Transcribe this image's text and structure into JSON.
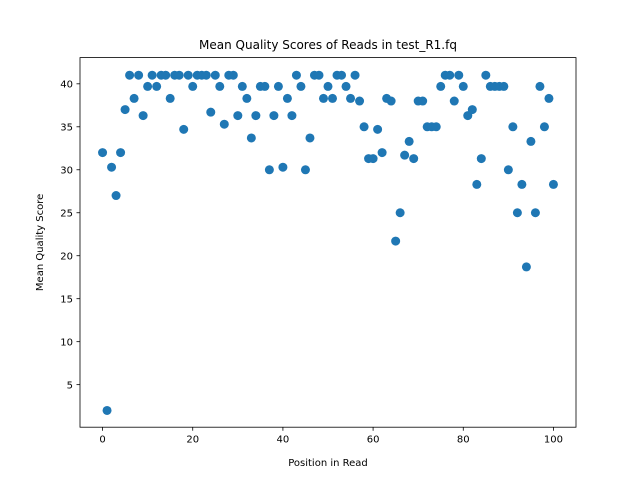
{
  "chart_data": {
    "type": "scatter",
    "title": "Mean Quality Scores of Reads in test_R1.fq",
    "xlabel": "Position in Read",
    "ylabel": "Mean Quality Score",
    "xlim": [
      -5,
      105
    ],
    "ylim": [
      0.05,
      43.05
    ],
    "xticks": [
      0,
      20,
      40,
      60,
      80,
      100
    ],
    "yticks": [
      5,
      10,
      15,
      20,
      25,
      30,
      35,
      40
    ],
    "grid": false,
    "marker_color": "#1f77b4",
    "points": [
      [
        0,
        32
      ],
      [
        1,
        2
      ],
      [
        2,
        30.3
      ],
      [
        3,
        27
      ],
      [
        4,
        32
      ],
      [
        5,
        37
      ],
      [
        6,
        41
      ],
      [
        7,
        38.3
      ],
      [
        8,
        41
      ],
      [
        9,
        36.3
      ],
      [
        10,
        39.7
      ],
      [
        11,
        41
      ],
      [
        12,
        39.7
      ],
      [
        13,
        41
      ],
      [
        14,
        41
      ],
      [
        15,
        38.3
      ],
      [
        16,
        41
      ],
      [
        17,
        41
      ],
      [
        18,
        34.7
      ],
      [
        19,
        41
      ],
      [
        20,
        39.7
      ],
      [
        21,
        41
      ],
      [
        22,
        41
      ],
      [
        23,
        41
      ],
      [
        24,
        36.7
      ],
      [
        25,
        41
      ],
      [
        26,
        39.7
      ],
      [
        27,
        35.3
      ],
      [
        28,
        41
      ],
      [
        29,
        41
      ],
      [
        30,
        36.3
      ],
      [
        31,
        39.7
      ],
      [
        32,
        38.3
      ],
      [
        33,
        33.7
      ],
      [
        34,
        36.3
      ],
      [
        35,
        39.7
      ],
      [
        36,
        39.7
      ],
      [
        37,
        30
      ],
      [
        38,
        36.3
      ],
      [
        39,
        39.7
      ],
      [
        40,
        30.3
      ],
      [
        41,
        38.3
      ],
      [
        42,
        36.3
      ],
      [
        43,
        41
      ],
      [
        44,
        39.7
      ],
      [
        45,
        30
      ],
      [
        46,
        33.7
      ],
      [
        47,
        41
      ],
      [
        48,
        41
      ],
      [
        49,
        38.3
      ],
      [
        50,
        39.7
      ],
      [
        51,
        38.3
      ],
      [
        52,
        41
      ],
      [
        53,
        41
      ],
      [
        54,
        39.7
      ],
      [
        55,
        38.3
      ],
      [
        56,
        41
      ],
      [
        57,
        38
      ],
      [
        58,
        35
      ],
      [
        59,
        31.3
      ],
      [
        60,
        31.3
      ],
      [
        61,
        34.7
      ],
      [
        62,
        32
      ],
      [
        63,
        38.3
      ],
      [
        64,
        38
      ],
      [
        65,
        21.7
      ],
      [
        66,
        25
      ],
      [
        67,
        31.7
      ],
      [
        68,
        33.3
      ],
      [
        69,
        31.3
      ],
      [
        70,
        38
      ],
      [
        71,
        38
      ],
      [
        72,
        35
      ],
      [
        73,
        35
      ],
      [
        74,
        35
      ],
      [
        75,
        39.7
      ],
      [
        76,
        41
      ],
      [
        77,
        41
      ],
      [
        78,
        38
      ],
      [
        79,
        41
      ],
      [
        80,
        39.7
      ],
      [
        81,
        36.3
      ],
      [
        82,
        37
      ],
      [
        83,
        28.3
      ],
      [
        84,
        31.3
      ],
      [
        85,
        41
      ],
      [
        86,
        39.7
      ],
      [
        87,
        39.7
      ],
      [
        88,
        39.7
      ],
      [
        89,
        39.7
      ],
      [
        90,
        30
      ],
      [
        91,
        35
      ],
      [
        92,
        25
      ],
      [
        93,
        28.3
      ],
      [
        94,
        18.7
      ],
      [
        95,
        33.3
      ],
      [
        96,
        25
      ],
      [
        97,
        39.7
      ],
      [
        98,
        35
      ],
      [
        99,
        38.3
      ],
      [
        100,
        28.3
      ]
    ]
  }
}
